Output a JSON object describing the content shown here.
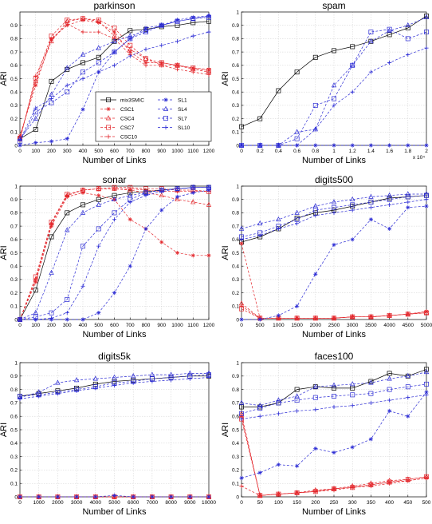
{
  "chart_data": [
    {
      "type": "line",
      "title": "parkinson",
      "xlabel": "Number of Links",
      "ylabel": "ARI",
      "xlim": [
        0,
        1200
      ],
      "ylim": [
        0,
        1
      ],
      "xticks": [
        0,
        100,
        200,
        300,
        400,
        500,
        600,
        700,
        800,
        900,
        1000,
        1100,
        1200
      ],
      "yticks": [
        0,
        0.1,
        0.2,
        0.3,
        0.4,
        0.5,
        0.6,
        0.7,
        0.8,
        0.9
      ],
      "x": [
        0,
        100,
        200,
        300,
        400,
        500,
        600,
        700,
        800,
        900,
        1000,
        1100,
        1200
      ],
      "legend": {
        "position": "bottom-left",
        "entries": [
          "mix3SMIC",
          "CSC1",
          "CSC4",
          "CSC7",
          "CSC10",
          "SL1",
          "SL4",
          "SL7",
          "SL10"
        ]
      },
      "series": [
        {
          "name": "mix3SMIC",
          "values": [
            0.05,
            0.12,
            0.48,
            0.57,
            0.62,
            0.66,
            0.78,
            0.86,
            0.87,
            0.89,
            0.9,
            0.92,
            0.93
          ]
        },
        {
          "name": "CSC1",
          "values": [
            0.07,
            0.45,
            0.8,
            0.9,
            0.94,
            0.92,
            0.85,
            0.7,
            0.62,
            0.62,
            0.6,
            0.58,
            0.57
          ]
        },
        {
          "name": "CSC4",
          "values": [
            0.06,
            0.48,
            0.78,
            0.93,
            0.95,
            0.93,
            0.82,
            0.72,
            0.65,
            0.6,
            0.6,
            0.57,
            0.55
          ]
        },
        {
          "name": "CSC7",
          "values": [
            0.05,
            0.5,
            0.82,
            0.94,
            0.95,
            0.94,
            0.88,
            0.75,
            0.65,
            0.62,
            0.6,
            0.58,
            0.56
          ]
        },
        {
          "name": "CSC10",
          "values": [
            0.04,
            0.52,
            0.79,
            0.91,
            0.85,
            0.85,
            0.8,
            0.68,
            0.6,
            0.6,
            0.57,
            0.55,
            0.53
          ]
        },
        {
          "name": "SL1",
          "values": [
            0,
            0.02,
            0.03,
            0.05,
            0.27,
            0.55,
            0.7,
            0.8,
            0.88,
            0.9,
            0.94,
            0.96,
            0.97
          ]
        },
        {
          "name": "SL4",
          "values": [
            0.05,
            0.2,
            0.38,
            0.58,
            0.68,
            0.73,
            0.78,
            0.82,
            0.86,
            0.9,
            0.93,
            0.95,
            0.97
          ]
        },
        {
          "name": "SL7",
          "values": [
            0.03,
            0.25,
            0.32,
            0.4,
            0.55,
            0.62,
            0.7,
            0.8,
            0.85,
            0.9,
            0.93,
            0.95,
            0.96
          ]
        },
        {
          "name": "SL10",
          "values": [
            0.04,
            0.28,
            0.35,
            0.45,
            0.5,
            0.55,
            0.6,
            0.67,
            0.72,
            0.75,
            0.78,
            0.82,
            0.85
          ]
        }
      ]
    },
    {
      "type": "line",
      "title": "spam",
      "xlabel": "Number of Links",
      "ylabel": "ARI",
      "xlim": [
        0,
        2
      ],
      "ylim": [
        0,
        1
      ],
      "x_multiplier": "x 10⁴",
      "xticks": [
        0,
        0.2,
        0.4,
        0.6,
        0.8,
        1,
        1.2,
        1.4,
        1.6,
        1.8,
        2
      ],
      "yticks": [
        0,
        0.1,
        0.2,
        0.3,
        0.4,
        0.5,
        0.6,
        0.7,
        0.8,
        0.9,
        1
      ],
      "x": [
        0,
        0.2,
        0.4,
        0.6,
        0.8,
        1,
        1.2,
        1.4,
        1.6,
        1.8,
        2
      ],
      "series": [
        {
          "name": "mix3SMIC",
          "values": [
            0.14,
            0.2,
            0.41,
            0.55,
            0.66,
            0.71,
            0.74,
            0.78,
            0.83,
            0.88,
            0.97
          ]
        },
        {
          "name": "SL1",
          "values": [
            0,
            0,
            0,
            0,
            0,
            0,
            0,
            0,
            0,
            0,
            0
          ]
        },
        {
          "name": "SL4",
          "values": [
            0,
            0,
            0,
            0.1,
            0.12,
            0.45,
            0.6,
            0.78,
            0.86,
            0.9,
            0.96
          ]
        },
        {
          "name": "SL7",
          "values": [
            0,
            0,
            0,
            0.05,
            0.3,
            0.35,
            0.6,
            0.85,
            0.87,
            0.8,
            0.85
          ]
        },
        {
          "name": "SL10",
          "values": [
            0,
            0,
            0,
            0,
            0.12,
            0.3,
            0.4,
            0.55,
            0.62,
            0.68,
            0.73
          ]
        }
      ]
    },
    {
      "type": "line",
      "title": "sonar",
      "xlabel": "Number of Links",
      "ylabel": "ARI",
      "xlim": [
        0,
        1200
      ],
      "ylim": [
        0,
        1
      ],
      "xticks": [
        0,
        100,
        200,
        300,
        400,
        500,
        600,
        700,
        800,
        900,
        1000,
        1100,
        1200
      ],
      "yticks": [
        0,
        0.1,
        0.2,
        0.3,
        0.4,
        0.5,
        0.6,
        0.7,
        0.8,
        0.9,
        1
      ],
      "x": [
        0,
        100,
        200,
        300,
        400,
        500,
        600,
        700,
        800,
        900,
        1000,
        1100,
        1200
      ],
      "series": [
        {
          "name": "mix3SMIC",
          "values": [
            0,
            0.22,
            0.62,
            0.8,
            0.86,
            0.9,
            0.93,
            0.95,
            0.96,
            0.97,
            0.98,
            0.99,
            0.99
          ]
        },
        {
          "name": "CSC1",
          "values": [
            0,
            0.28,
            0.7,
            0.92,
            0.95,
            0.93,
            0.9,
            0.75,
            0.68,
            0.58,
            0.5,
            0.48,
            0.48
          ]
        },
        {
          "name": "CSC4",
          "values": [
            0,
            0.3,
            0.72,
            0.93,
            0.97,
            0.98,
            0.98,
            0.97,
            0.95,
            0.93,
            0.9,
            0.88,
            0.86
          ]
        },
        {
          "name": "CSC7",
          "values": [
            0,
            0.32,
            0.73,
            0.94,
            0.97,
            0.98,
            0.99,
            0.99,
            0.98,
            0.98,
            0.97,
            0.97,
            0.96
          ]
        },
        {
          "name": "CSC10",
          "values": [
            0,
            0.3,
            0.72,
            0.93,
            0.97,
            0.98,
            0.98,
            0.98,
            0.97,
            0.96,
            0.96,
            0.96,
            0.96
          ]
        },
        {
          "name": "SL1",
          "values": [
            0,
            0,
            0,
            0,
            0,
            0.05,
            0.2,
            0.4,
            0.68,
            0.82,
            0.92,
            0.95,
            0.97
          ]
        },
        {
          "name": "SL4",
          "values": [
            0,
            0.05,
            0.35,
            0.67,
            0.8,
            0.86,
            0.9,
            0.93,
            0.95,
            0.97,
            0.98,
            0.99,
            0.99
          ]
        },
        {
          "name": "SL7",
          "values": [
            0,
            0.02,
            0.05,
            0.15,
            0.55,
            0.68,
            0.8,
            0.9,
            0.95,
            0.97,
            0.98,
            0.99,
            0.99
          ]
        },
        {
          "name": "SL10",
          "values": [
            0,
            0,
            0.01,
            0.05,
            0.25,
            0.55,
            0.75,
            0.88,
            0.93,
            0.96,
            0.98,
            0.99,
            0.99
          ]
        }
      ]
    },
    {
      "type": "line",
      "title": "digits500",
      "xlabel": "Number of Links",
      "ylabel": "ARI",
      "xlim": [
        0,
        5000
      ],
      "ylim": [
        0,
        1
      ],
      "xticks": [
        0,
        500,
        1000,
        1500,
        2000,
        2500,
        3000,
        3500,
        4000,
        4500,
        5000
      ],
      "yticks": [
        0,
        0.1,
        0.2,
        0.3,
        0.4,
        0.5,
        0.6,
        0.7,
        0.8,
        0.9,
        1
      ],
      "x": [
        0,
        500,
        1000,
        1500,
        2000,
        2500,
        3000,
        3500,
        4000,
        4500,
        5000
      ],
      "series": [
        {
          "name": "mix3SMIC",
          "values": [
            0.58,
            0.62,
            0.68,
            0.76,
            0.8,
            0.82,
            0.85,
            0.88,
            0.91,
            0.92,
            0.93
          ]
        },
        {
          "name": "CSC1",
          "values": [
            0.57,
            0.01,
            0.01,
            0.01,
            0.01,
            0.01,
            0.02,
            0.02,
            0.03,
            0.04,
            0.06
          ]
        },
        {
          "name": "CSC4",
          "values": [
            0.12,
            0.01,
            0.01,
            0.01,
            0.01,
            0.01,
            0.02,
            0.02,
            0.03,
            0.04,
            0.05
          ]
        },
        {
          "name": "CSC7",
          "values": [
            0.08,
            0.01,
            0.01,
            0.01,
            0.01,
            0.01,
            0.02,
            0.02,
            0.03,
            0.04,
            0.05
          ]
        },
        {
          "name": "CSC10",
          "values": [
            0.1,
            0.01,
            0.01,
            0.01,
            0.01,
            0.01,
            0.02,
            0.02,
            0.03,
            0.04,
            0.06
          ]
        },
        {
          "name": "SL1",
          "values": [
            0,
            0,
            0.03,
            0.1,
            0.34,
            0.56,
            0.6,
            0.75,
            0.68,
            0.84,
            0.85
          ]
        },
        {
          "name": "SL4",
          "values": [
            0.68,
            0.72,
            0.75,
            0.8,
            0.85,
            0.88,
            0.9,
            0.92,
            0.93,
            0.94,
            0.94
          ]
        },
        {
          "name": "SL7",
          "values": [
            0.62,
            0.65,
            0.7,
            0.75,
            0.82,
            0.84,
            0.86,
            0.88,
            0.9,
            0.92,
            0.93
          ]
        },
        {
          "name": "SL10",
          "values": [
            0.6,
            0.63,
            0.68,
            0.72,
            0.78,
            0.8,
            0.82,
            0.84,
            0.86,
            0.88,
            0.9
          ]
        }
      ]
    },
    {
      "type": "line",
      "title": "digits5k",
      "xlabel": "Number of Links",
      "ylabel": "ARI",
      "xlim": [
        0,
        10000
      ],
      "ylim": [
        0,
        1
      ],
      "xticks": [
        0,
        1000,
        2000,
        3000,
        4000,
        5000,
        6000,
        7000,
        8000,
        9000,
        10000
      ],
      "yticks": [
        0,
        0.1,
        0.2,
        0.3,
        0.4,
        0.5,
        0.6,
        0.7,
        0.8,
        0.9,
        1
      ],
      "x": [
        0,
        1000,
        2000,
        3000,
        4000,
        5000,
        6000,
        7000,
        8000,
        9000,
        10000
      ],
      "series": [
        {
          "name": "mix3SMIC",
          "values": [
            0.75,
            0.77,
            0.79,
            0.81,
            0.84,
            0.86,
            0.87,
            0.88,
            0.89,
            0.9,
            0.9
          ]
        },
        {
          "name": "CSC1",
          "values": [
            0,
            0,
            0,
            0,
            0,
            0,
            0,
            0,
            0,
            0,
            0
          ]
        },
        {
          "name": "CSC4",
          "values": [
            0,
            0,
            0,
            0,
            0,
            0,
            0,
            0,
            0,
            0,
            0
          ]
        },
        {
          "name": "CSC7",
          "values": [
            0,
            0,
            0,
            0,
            0,
            0,
            0,
            0,
            0,
            0,
            0
          ]
        },
        {
          "name": "CSC10",
          "values": [
            0,
            0,
            0,
            0,
            0,
            0,
            0,
            0,
            0,
            0,
            0
          ]
        },
        {
          "name": "SL1",
          "values": [
            0,
            0,
            0,
            0,
            0,
            0.01,
            0,
            0,
            0,
            0,
            0
          ]
        },
        {
          "name": "SL4",
          "values": [
            0.74,
            0.78,
            0.85,
            0.87,
            0.88,
            0.89,
            0.9,
            0.91,
            0.91,
            0.92,
            0.92
          ]
        },
        {
          "name": "SL7",
          "values": [
            0.75,
            0.76,
            0.78,
            0.8,
            0.82,
            0.85,
            0.86,
            0.88,
            0.89,
            0.9,
            0.91
          ]
        },
        {
          "name": "SL10",
          "values": [
            0.73,
            0.75,
            0.77,
            0.79,
            0.81,
            0.83,
            0.85,
            0.86,
            0.87,
            0.88,
            0.89
          ]
        }
      ]
    },
    {
      "type": "line",
      "title": "faces100",
      "xlabel": "Number of Links",
      "ylabel": "ARI",
      "xlim": [
        0,
        500
      ],
      "ylim": [
        0,
        1
      ],
      "xticks": [
        0,
        50,
        100,
        150,
        200,
        250,
        300,
        350,
        400,
        450,
        500
      ],
      "yticks": [
        0,
        0.1,
        0.2,
        0.3,
        0.4,
        0.5,
        0.6,
        0.7,
        0.8,
        0.9,
        1
      ],
      "x": [
        0,
        50,
        100,
        150,
        200,
        250,
        300,
        350,
        400,
        450,
        500
      ],
      "series": [
        {
          "name": "mix3SMIC",
          "values": [
            0.67,
            0.67,
            0.7,
            0.8,
            0.82,
            0.81,
            0.81,
            0.86,
            0.92,
            0.9,
            0.95
          ]
        },
        {
          "name": "CSC1",
          "values": [
            0.6,
            0.01,
            0.02,
            0.03,
            0.04,
            0.06,
            0.07,
            0.09,
            0.11,
            0.12,
            0.14
          ]
        },
        {
          "name": "CSC4",
          "values": [
            0.62,
            0.01,
            0.02,
            0.03,
            0.05,
            0.06,
            0.08,
            0.1,
            0.12,
            0.13,
            0.15
          ]
        },
        {
          "name": "CSC7",
          "values": [
            0.58,
            0.01,
            0.02,
            0.03,
            0.04,
            0.06,
            0.07,
            0.09,
            0.11,
            0.13,
            0.15
          ]
        },
        {
          "name": "CSC10",
          "values": [
            0.08,
            0.01,
            0.02,
            0.03,
            0.04,
            0.05,
            0.07,
            0.08,
            0.1,
            0.12,
            0.14
          ]
        },
        {
          "name": "SL1",
          "values": [
            0.14,
            0.18,
            0.24,
            0.23,
            0.36,
            0.33,
            0.37,
            0.43,
            0.64,
            0.6,
            0.78
          ]
        },
        {
          "name": "SL4",
          "values": [
            0.7,
            0.68,
            0.72,
            0.75,
            0.82,
            0.83,
            0.84,
            0.85,
            0.88,
            0.9,
            0.93
          ]
        },
        {
          "name": "SL7",
          "values": [
            0.62,
            0.66,
            0.7,
            0.72,
            0.74,
            0.75,
            0.76,
            0.77,
            0.8,
            0.82,
            0.84
          ]
        },
        {
          "name": "SL10",
          "values": [
            0.58,
            0.6,
            0.62,
            0.64,
            0.65,
            0.67,
            0.68,
            0.7,
            0.72,
            0.74,
            0.76
          ]
        }
      ]
    }
  ],
  "colors": {
    "mix3SMIC": "#000000",
    "CSC": "#e3262b",
    "SL": "#2a2ad4"
  },
  "markers": {
    "mix3SMIC": "square",
    "CSC1": "star",
    "CSC4": "triangle",
    "CSC7": "square",
    "CSC10": "plus",
    "SL1": "star",
    "SL4": "triangle",
    "SL7": "square",
    "SL10": "plus"
  }
}
